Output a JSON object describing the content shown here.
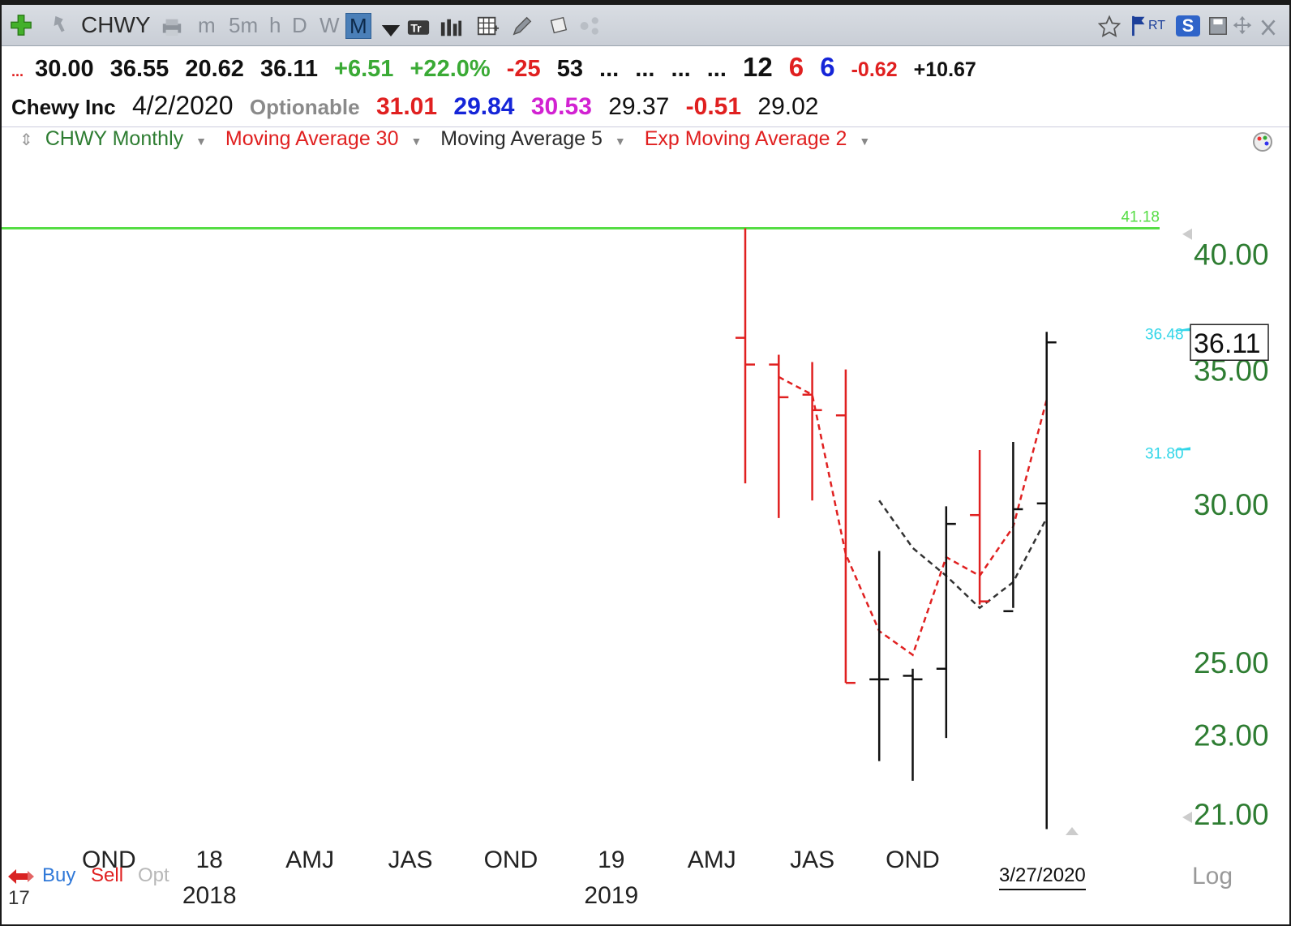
{
  "toolbar": {
    "symbol": "CHWY",
    "timeframes": [
      "m",
      "5m",
      "h",
      "D",
      "W",
      "M"
    ],
    "active_timeframe": "M",
    "right_labels": [
      "RT",
      "S"
    ]
  },
  "quote": {
    "prefix": "...",
    "open": "30.00",
    "high": "36.55",
    "low": "20.62",
    "close": "36.11",
    "change": "+6.51",
    "change_pct": "+22.0%",
    "v1": "-25",
    "v2": "53",
    "dots": [
      "...",
      "...",
      "...",
      "..."
    ],
    "n1": "12",
    "n2": "6",
    "n3": "6",
    "d1": "-0.62",
    "d2": "+10.67"
  },
  "info": {
    "name": "Chewy Inc",
    "date": "4/2/2020",
    "optionable": "Optionable",
    "p1": "31.01",
    "p2": "29.84",
    "p3": "30.53",
    "p4": "29.37",
    "p5": "-0.51",
    "p6": "29.02"
  },
  "legend": {
    "main": "CHWY Monthly",
    "ma30": "Moving Average 30",
    "ma5": "Moving Average 5",
    "ema2": "Exp Moving Average 2"
  },
  "footer": {
    "buy": "Buy",
    "sell": "Sell",
    "opt": "Opt",
    "log": "Log",
    "last_date": "3/27/2020",
    "left_stub": "17"
  },
  "colors": {
    "down": "#e02020",
    "up": "#111111",
    "ma30": "#e02020",
    "ma5": "#333333",
    "ath": "#55dd44",
    "axis": "#2e7d32",
    "cyan": "#33d6e8"
  },
  "chart_data": {
    "type": "ohlc",
    "scale": "log",
    "ylim": [
      20.4,
      44.6
    ],
    "y_ticks": [
      {
        "value": 40,
        "label": "40.00"
      },
      {
        "value": 35,
        "label": "35.00"
      },
      {
        "value": 30,
        "label": "30.00"
      },
      {
        "value": 25,
        "label": "25.00"
      },
      {
        "value": 23,
        "label": "23.00"
      },
      {
        "value": 21,
        "label": "21.00"
      }
    ],
    "x_ticks": [
      {
        "label": "OND",
        "idx": -19
      },
      {
        "label": "18",
        "idx": -16
      },
      {
        "label": "AMJ",
        "idx": -13
      },
      {
        "label": "JAS",
        "idx": -10
      },
      {
        "label": "OND",
        "idx": -7
      },
      {
        "label": "19",
        "idx": -4
      },
      {
        "label": "AMJ",
        "idx": -1
      },
      {
        "label": "JAS",
        "idx": 2
      },
      {
        "label": "OND",
        "idx": 5
      }
    ],
    "year_labels": [
      {
        "label": "2018",
        "idx": -16
      },
      {
        "label": "2019",
        "idx": -4
      }
    ],
    "bars": [
      {
        "open": 36.3,
        "high": 41.18,
        "low": 30.7,
        "close": 35.2,
        "color": "down"
      },
      {
        "open": 35.2,
        "high": 35.6,
        "low": 29.5,
        "close": 33.9,
        "color": "down"
      },
      {
        "open": 34.0,
        "high": 35.3,
        "low": 30.1,
        "close": 33.4,
        "color": "down"
      },
      {
        "open": 33.2,
        "high": 35.0,
        "low": 24.4,
        "close": 24.4,
        "color": "down"
      },
      {
        "open": 24.5,
        "high": 28.4,
        "low": 22.3,
        "close": 24.5,
        "color": "up"
      },
      {
        "open": 24.6,
        "high": 24.8,
        "low": 21.8,
        "close": 24.5,
        "color": "up"
      },
      {
        "open": 24.8,
        "high": 29.9,
        "low": 22.9,
        "close": 29.3,
        "color": "up"
      },
      {
        "open": 29.6,
        "high": 31.9,
        "low": 26.7,
        "close": 26.8,
        "color": "down"
      },
      {
        "open": 26.5,
        "high": 32.2,
        "low": 26.6,
        "close": 29.8,
        "color": "up"
      },
      {
        "open": 30.0,
        "high": 36.55,
        "low": 20.62,
        "close": 36.11,
        "color": "up"
      }
    ],
    "ma30": [
      null,
      34.7,
      34.0,
      28.3,
      25.9,
      25.2,
      28.2,
      27.6,
      29.2,
      33.8
    ],
    "ma5": [
      null,
      null,
      null,
      null,
      30.1,
      28.5,
      27.6,
      26.6,
      27.4,
      29.5
    ],
    "lines": [
      {
        "label": "41.18",
        "value": 41.18,
        "color": "ath"
      }
    ],
    "markers": [
      {
        "label": "36.48",
        "value": 36.48
      },
      {
        "label": "31.80",
        "value": 31.8
      }
    ],
    "last_price": "36.11",
    "last_value": 36.11
  }
}
